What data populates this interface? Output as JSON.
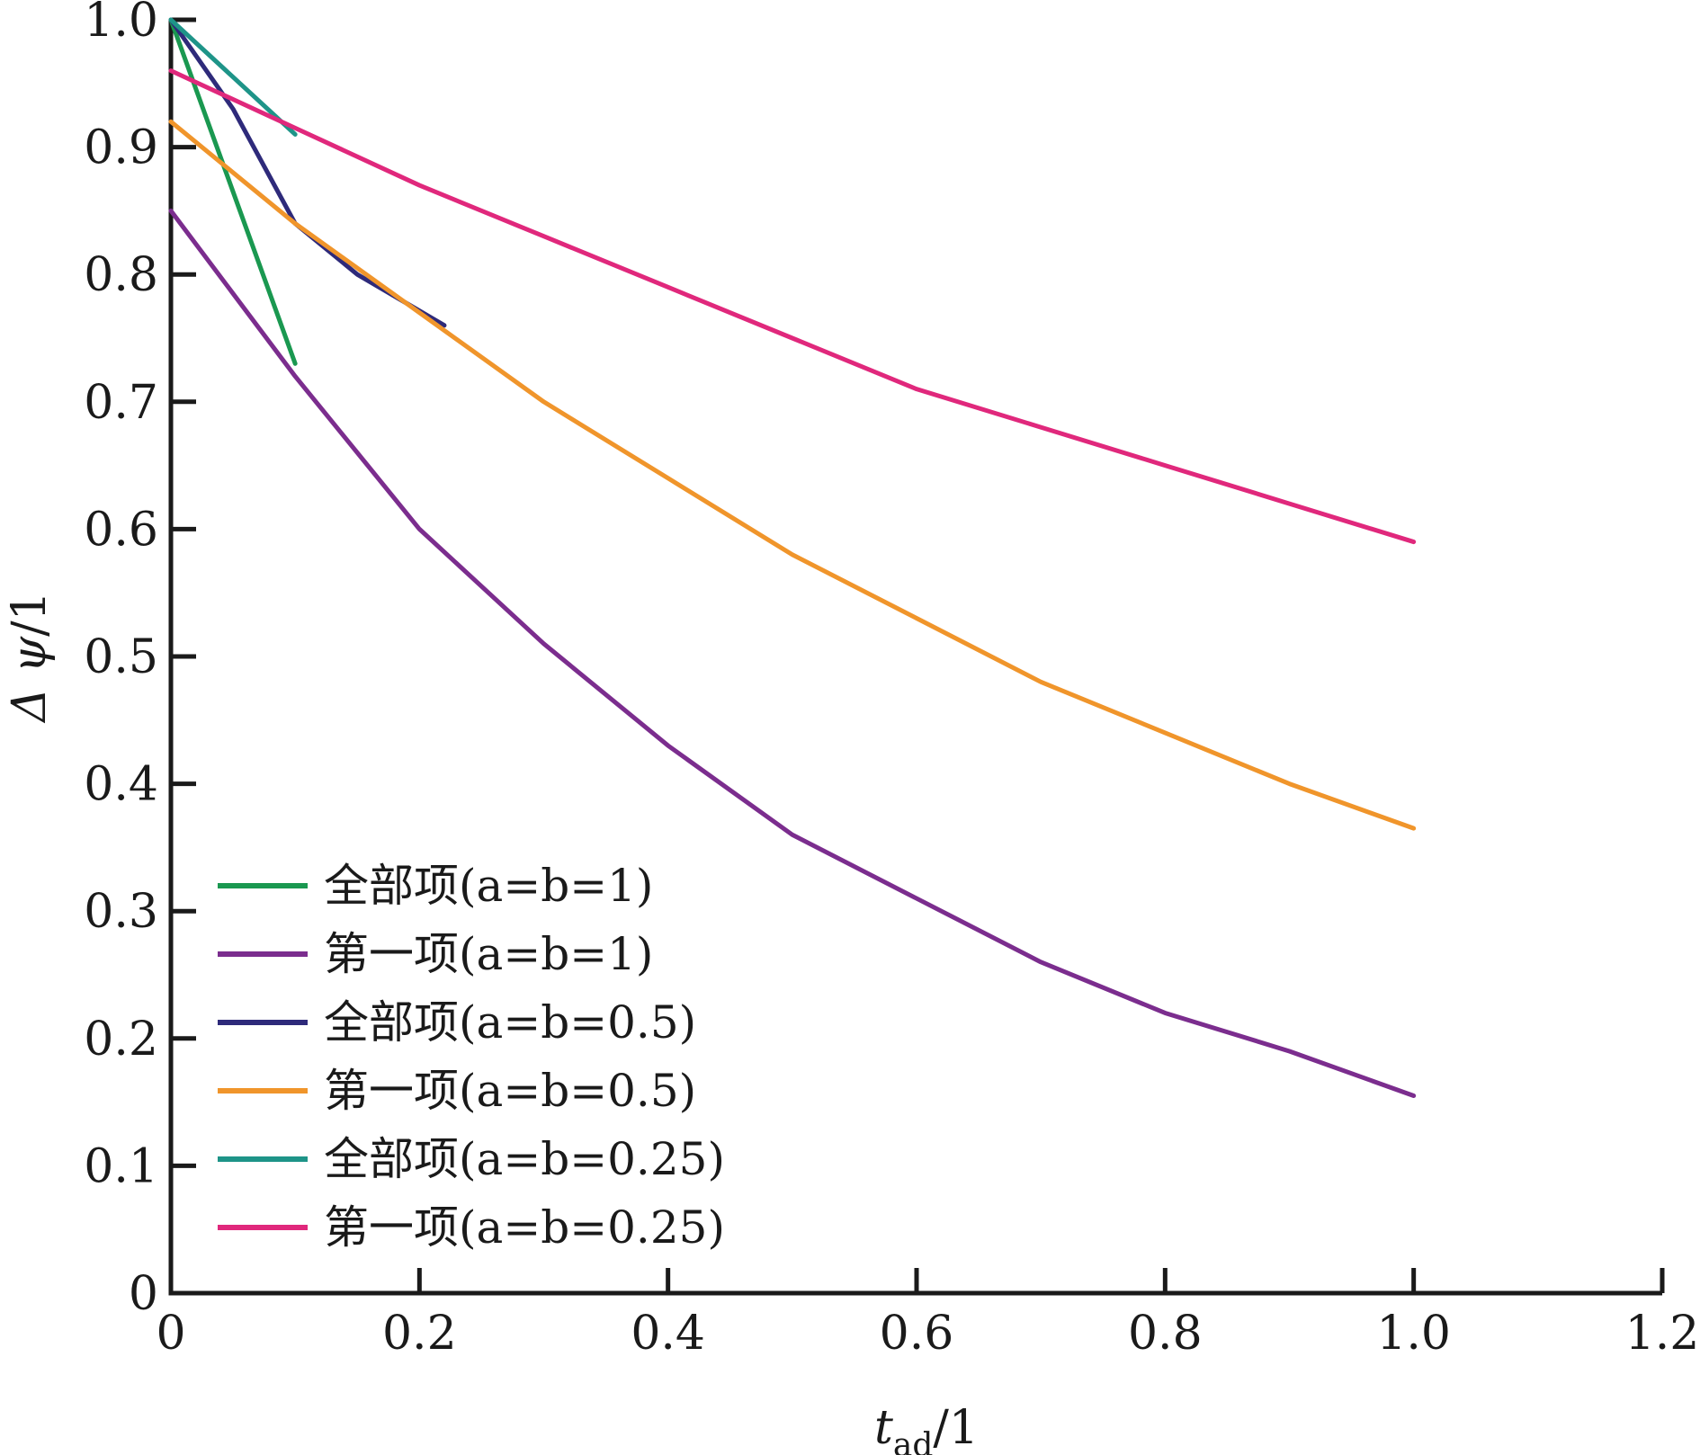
{
  "chart_data": {
    "type": "line",
    "xlabel": {
      "main": "t",
      "sub": "ad",
      "tail": "/1"
    },
    "ylabel": {
      "main": "Δ ψ",
      "tail": "/1"
    },
    "xlim": [
      0,
      1.2
    ],
    "ylim": [
      0,
      1.0
    ],
    "x_ticks": [
      "0",
      "0.2",
      "0.4",
      "0.6",
      "0.8",
      "1.0",
      "1.2"
    ],
    "y_ticks": [
      "0",
      "0.1",
      "0.2",
      "0.3",
      "0.4",
      "0.5",
      "0.6",
      "0.7",
      "0.8",
      "0.9",
      "1.0"
    ],
    "grid": false,
    "legend_position": "bottom-left",
    "series": [
      {
        "name": "全部项(a=b=1)",
        "color": "#1a9850",
        "x": [
          0,
          0.1
        ],
        "y": [
          1.0,
          0.73
        ]
      },
      {
        "name": "第一项(a=b=1)",
        "color": "#7b2d8e",
        "x": [
          0,
          0.1,
          0.2,
          0.3,
          0.4,
          0.5,
          0.6,
          0.7,
          0.8,
          0.9,
          1.0
        ],
        "y": [
          0.85,
          0.72,
          0.6,
          0.51,
          0.43,
          0.36,
          0.31,
          0.26,
          0.22,
          0.19,
          0.155
        ]
      },
      {
        "name": "全部项(a=b=0.5)",
        "color": "#2e2a7a",
        "x": [
          0,
          0.05,
          0.1,
          0.15,
          0.22
        ],
        "y": [
          1.0,
          0.93,
          0.84,
          0.8,
          0.76
        ]
      },
      {
        "name": "第一项(a=b=0.5)",
        "color": "#f0952b",
        "x": [
          0,
          0.1,
          0.2,
          0.3,
          0.4,
          0.5,
          0.6,
          0.7,
          0.8,
          0.9,
          1.0
        ],
        "y": [
          0.92,
          0.84,
          0.77,
          0.7,
          0.64,
          0.58,
          0.53,
          0.48,
          0.44,
          0.4,
          0.365
        ]
      },
      {
        "name": "全部项(a=b=0.25)",
        "color": "#1e9488",
        "x": [
          0,
          0.1
        ],
        "y": [
          1.0,
          0.91
        ]
      },
      {
        "name": "第一项(a=b=0.25)",
        "color": "#e0287c",
        "x": [
          0,
          0.1,
          0.2,
          0.3,
          0.4,
          0.5,
          0.6,
          0.7,
          0.8,
          0.9,
          1.0
        ],
        "y": [
          0.96,
          0.915,
          0.87,
          0.83,
          0.79,
          0.75,
          0.71,
          0.68,
          0.65,
          0.62,
          0.59
        ]
      }
    ]
  }
}
